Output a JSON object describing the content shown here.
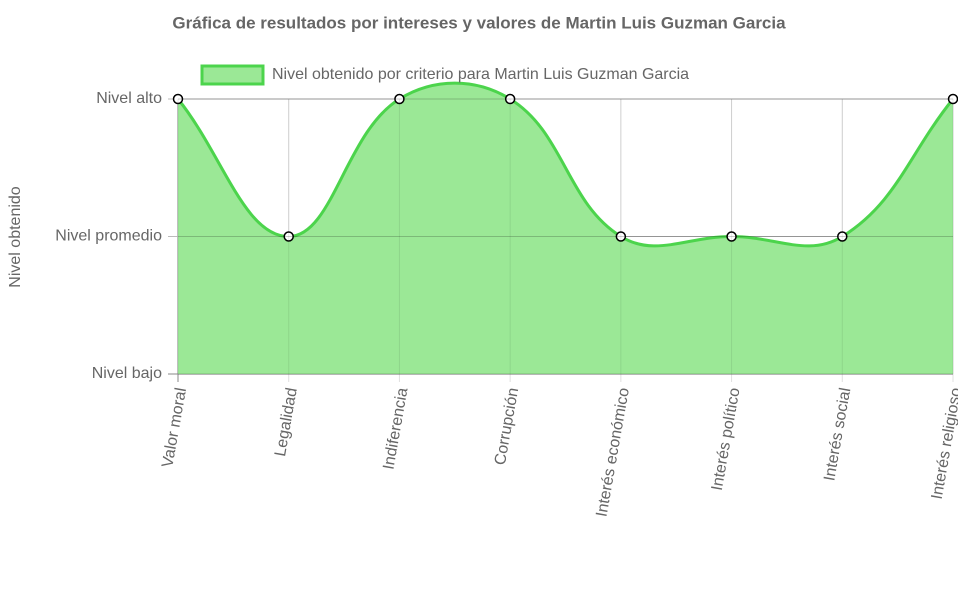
{
  "chart_data": {
    "type": "line",
    "title": "Gráfica de resultados por intereses y valores de Martin Luis Guzman Garcia",
    "ylabel": "Nivel obtenido",
    "categories": [
      "Valor moral",
      "Legalidad",
      "Indiferencia",
      "Corrupción",
      "Interés económico",
      "Interés político",
      "Interés social",
      "Interés religioso"
    ],
    "series": [
      {
        "name": "Nivel obtenido por criterio para Martin Luis Guzman Garcia",
        "color": "#4cd44c",
        "fill_color": "#9be896",
        "values": [
          3,
          2,
          3,
          3,
          2,
          2,
          2,
          3
        ]
      }
    ],
    "ylim": [
      1,
      3
    ],
    "yticks": [
      {
        "value": 1,
        "label": "Nivel bajo"
      },
      {
        "value": 2,
        "label": "Nivel promedio"
      },
      {
        "value": 3,
        "label": "Nivel alto"
      }
    ],
    "grid": true,
    "fill": true,
    "legend": "top"
  }
}
